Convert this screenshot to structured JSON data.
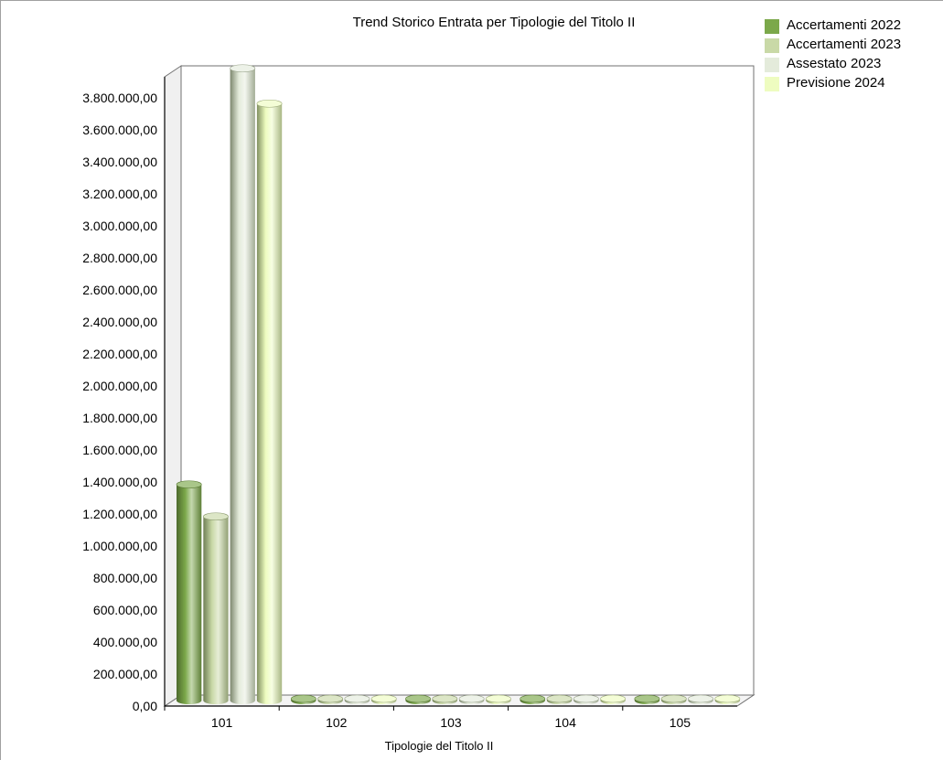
{
  "chart_data": {
    "type": "bar",
    "title": "Trend Storico Entrata per Tipologie del Titolo II",
    "xlabel": "Tipologie del Titolo II",
    "ylabel": "",
    "categories": [
      "101",
      "102",
      "103",
      "104",
      "105"
    ],
    "series": [
      {
        "name": "Accertamenti 2022",
        "color": "#7ba84a",
        "values": [
          1350000,
          0,
          0,
          0,
          0
        ]
      },
      {
        "name": "Accertamenti 2023",
        "color": "#c9d9a7",
        "values": [
          1150000,
          0,
          0,
          0,
          0
        ]
      },
      {
        "name": "Assestato 2023",
        "color": "#e4ebdb",
        "values": [
          3950000,
          0,
          0,
          0,
          0
        ]
      },
      {
        "name": "Previsione 2024",
        "color": "#eefcc0",
        "values": [
          3730000,
          0,
          0,
          0,
          0
        ]
      }
    ],
    "ylim": [
      0,
      3800000
    ],
    "y_ticks": [
      "0,00",
      "200.000,00",
      "400.000,00",
      "600.000,00",
      "800.000,00",
      "1.000.000,00",
      "1.200.000,00",
      "1.400.000,00",
      "1.600.000,00",
      "1.800.000,00",
      "2.000.000,00",
      "2.200.000,00",
      "2.400.000,00",
      "2.600.000,00",
      "2.800.000,00",
      "3.000.000,00",
      "3.200.000,00",
      "3.400.000,00",
      "3.600.000,00",
      "3.800.000,00"
    ],
    "grid": true,
    "legend_position": "top-right",
    "style": "3d"
  }
}
